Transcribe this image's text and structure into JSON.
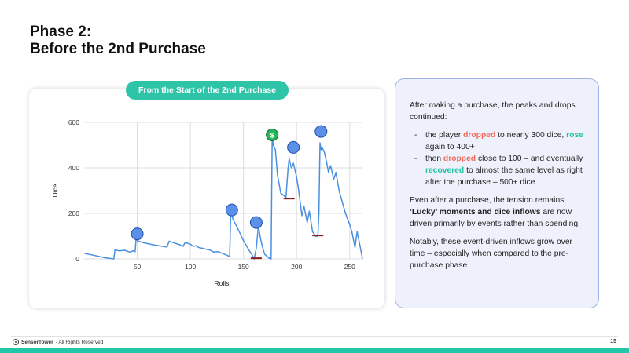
{
  "title": {
    "line1": "Phase 2:",
    "line2": "Before the 2nd Purchase"
  },
  "pill": "From the Start of the 2nd Purchase",
  "chart_data": {
    "type": "line",
    "title": "",
    "xlabel": "Rolls",
    "ylabel": "Dice",
    "xlim": [
      0,
      262
    ],
    "ylim": [
      0,
      600
    ],
    "xticks": [
      50,
      100,
      150,
      200,
      250
    ],
    "yticks": [
      0,
      200,
      400,
      600
    ],
    "grid": true,
    "line_color": "#4a8fe0",
    "series": [
      {
        "x": [
          0,
          10,
          20,
          28,
          29,
          33,
          38,
          43,
          46,
          48,
          49,
          50,
          55,
          65,
          78,
          80,
          85,
          90,
          93,
          95,
          100,
          103,
          105,
          108,
          110,
          113,
          115,
          118,
          122,
          126,
          130,
          135,
          137,
          138,
          139,
          140,
          145,
          150,
          155,
          159,
          160,
          162,
          164,
          166,
          168,
          170,
          175,
          176,
          177,
          178,
          180,
          182,
          185,
          190,
          192,
          193,
          195,
          197,
          200,
          202,
          205,
          207,
          210,
          212,
          215,
          218,
          220,
          221,
          222,
          223,
          224,
          226,
          228,
          230,
          232,
          235,
          237,
          240,
          243,
          246,
          250,
          252,
          255,
          257,
          260,
          262
        ],
        "y": [
          25,
          15,
          5,
          0,
          40,
          35,
          38,
          30,
          35,
          32,
          95,
          80,
          72,
          62,
          52,
          78,
          70,
          62,
          55,
          72,
          65,
          55,
          58,
          50,
          48,
          45,
          42,
          40,
          30,
          32,
          25,
          15,
          10,
          210,
          200,
          175,
          130,
          80,
          40,
          10,
          0,
          45,
          145,
          90,
          50,
          20,
          0,
          0,
          540,
          500,
          480,
          370,
          290,
          270,
          400,
          440,
          400,
          420,
          360,
          300,
          190,
          230,
          160,
          210,
          120,
          100,
          100,
          200,
          510,
          480,
          490,
          470,
          430,
          380,
          410,
          350,
          380,
          300,
          250,
          200,
          150,
          120,
          50,
          120,
          50,
          0
        ]
      }
    ],
    "markers": [
      {
        "type": "dot",
        "x": 50,
        "y": 110
      },
      {
        "type": "dot",
        "x": 139,
        "y": 215
      },
      {
        "type": "dot",
        "x": 162,
        "y": 160
      },
      {
        "type": "dollar",
        "x": 177,
        "y": 545,
        "label": "$"
      },
      {
        "type": "dot",
        "x": 197,
        "y": 490
      },
      {
        "type": "dot",
        "x": 223,
        "y": 560
      },
      {
        "type": "bar",
        "x": 162,
        "y": 3
      },
      {
        "type": "bar",
        "x": 193,
        "y": 265
      },
      {
        "type": "bar",
        "x": 220,
        "y": 103
      }
    ],
    "colors": {
      "dot": "#5b8fe8",
      "dollar": "#22b55a",
      "bar": "#8b1a1a"
    }
  },
  "notes": {
    "p1": "After making a purchase, the peaks and drops continued:",
    "b1_a": "the player ",
    "b1_red": "dropped",
    "b1_b": " to nearly 300 dice, ",
    "b1_teal": "rose",
    "b1_c": " again to 400+",
    "b2_a": "then ",
    "b2_red": "dropped",
    "b2_b": " close to 100 – and eventually ",
    "b2_teal": "recovered",
    "b2_c": " to almost the same level as right after the purchase – 500+ dice",
    "p2_a": "Even after a purchase, the tension remains. ",
    "p2_bold": "‘Lucky’ moments and dice inflows",
    "p2_b": " are now driven primarily by events rather than spending.",
    "p3": "Notably, these event-driven inflows grow over time – especially when compared to the pre-purchase phase"
  },
  "footer": {
    "brand": "SensorTower",
    "rights": " - All Rights Reserved",
    "page": "15"
  }
}
